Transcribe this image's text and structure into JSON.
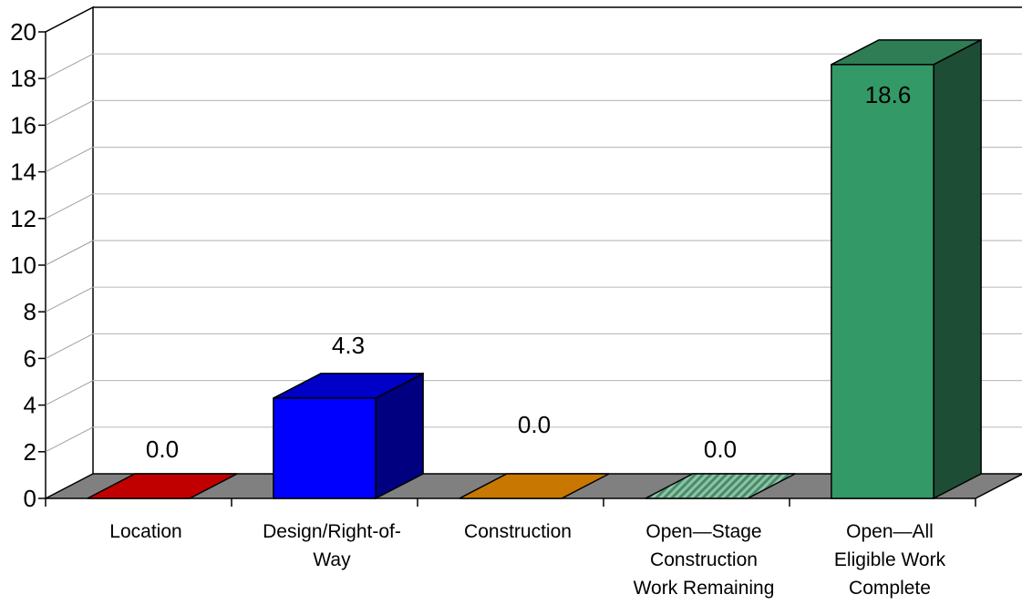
{
  "chart_data": {
    "type": "bar",
    "title": "",
    "xlabel": "",
    "ylabel": "",
    "ylim": [
      0,
      20
    ],
    "yticks": [
      "0",
      "2",
      "4",
      "6",
      "8",
      "10",
      "12",
      "14",
      "16",
      "18",
      "20"
    ],
    "grid": true,
    "legend": "none",
    "categories": [
      [
        "Location"
      ],
      [
        "Design/Right-of-",
        "Way"
      ],
      [
        "Construction"
      ],
      [
        "Open—Stage",
        "Construction",
        "Work Remaining"
      ],
      [
        "Open—All",
        "Eligible Work",
        "Complete"
      ]
    ],
    "values": [
      0.0,
      4.3,
      0.0,
      0.0,
      18.6
    ],
    "value_labels": [
      "0.0",
      "4.3",
      "0.0",
      "0.0",
      "18.6"
    ],
    "colors": [
      "#c00000",
      "#0000ff",
      "#c87800",
      "#6aa88a",
      "#339966"
    ],
    "side_colors": [
      "#6a0000",
      "#000080",
      "#7a4a00",
      "#3a6a50",
      "#1e4d35"
    ],
    "top_colors": [
      "#c00000",
      "#0000c8",
      "#c87800",
      "#6aa88a",
      "#2e7d55"
    ],
    "patterns": [
      "solid",
      "solid",
      "solid",
      "hatched",
      "solid"
    ],
    "floor_color": "#808080"
  }
}
